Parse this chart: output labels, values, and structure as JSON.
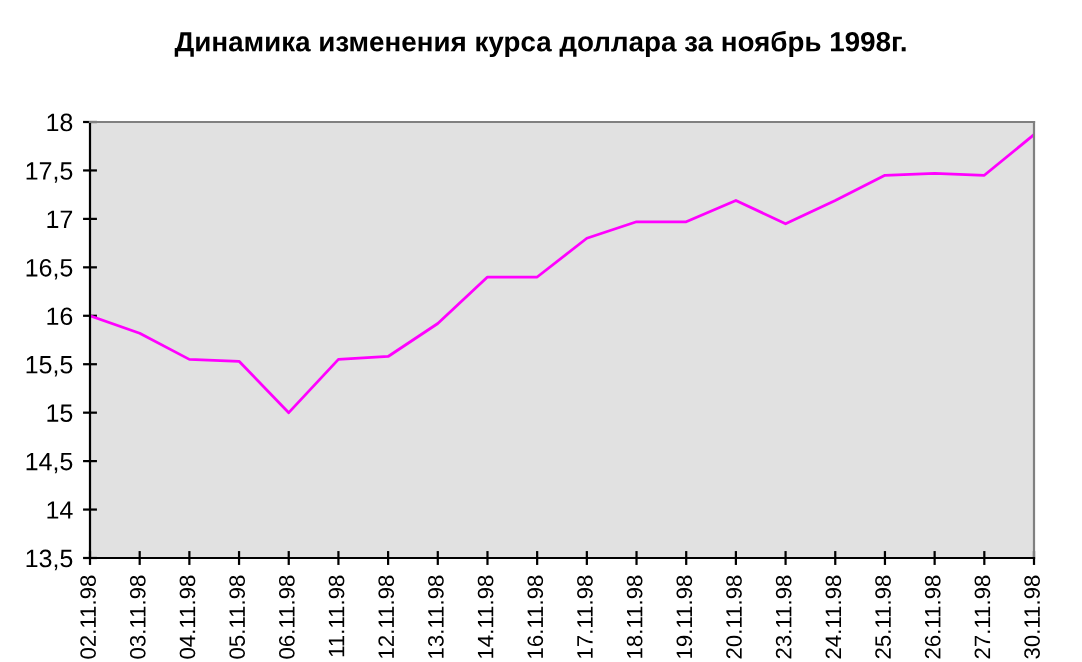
{
  "chart_data": {
    "type": "line",
    "title": "Динамика изменения курса доллара за ноябрь 1998г.",
    "categories": [
      "02.11.98",
      "03.11.98",
      "04.11.98",
      "05.11.98",
      "06.11.98",
      "11.11.98",
      "12.11.98",
      "13.11.98",
      "14.11.98",
      "16.11.98",
      "17.11.98",
      "18.11.98",
      "19.11.98",
      "20.11.98",
      "23.11.98",
      "24.11.98",
      "25.11.98",
      "26.11.98",
      "27.11.98",
      "30.11.98"
    ],
    "series": [
      {
        "color": "#ff00ff",
        "values": [
          16.0,
          15.82,
          15.55,
          15.53,
          15.0,
          15.55,
          15.58,
          15.92,
          16.4,
          16.4,
          16.8,
          16.97,
          16.97,
          17.19,
          16.95,
          17.19,
          17.45,
          17.47,
          17.45,
          17.87
        ]
      }
    ],
    "ylim": [
      13.5,
      18
    ],
    "yticks": [
      {
        "value": 13.5,
        "label": "13,5"
      },
      14,
      {
        "value": 14.5,
        "label": "14,5"
      },
      15,
      {
        "value": 15.5,
        "label": "15,5"
      },
      16,
      {
        "value": 16.5,
        "label": "16,5"
      },
      17,
      {
        "value": 17.5,
        "label": "17,5"
      },
      18
    ],
    "grid": false,
    "legend": false,
    "marker": "none",
    "line_style": "solid"
  }
}
